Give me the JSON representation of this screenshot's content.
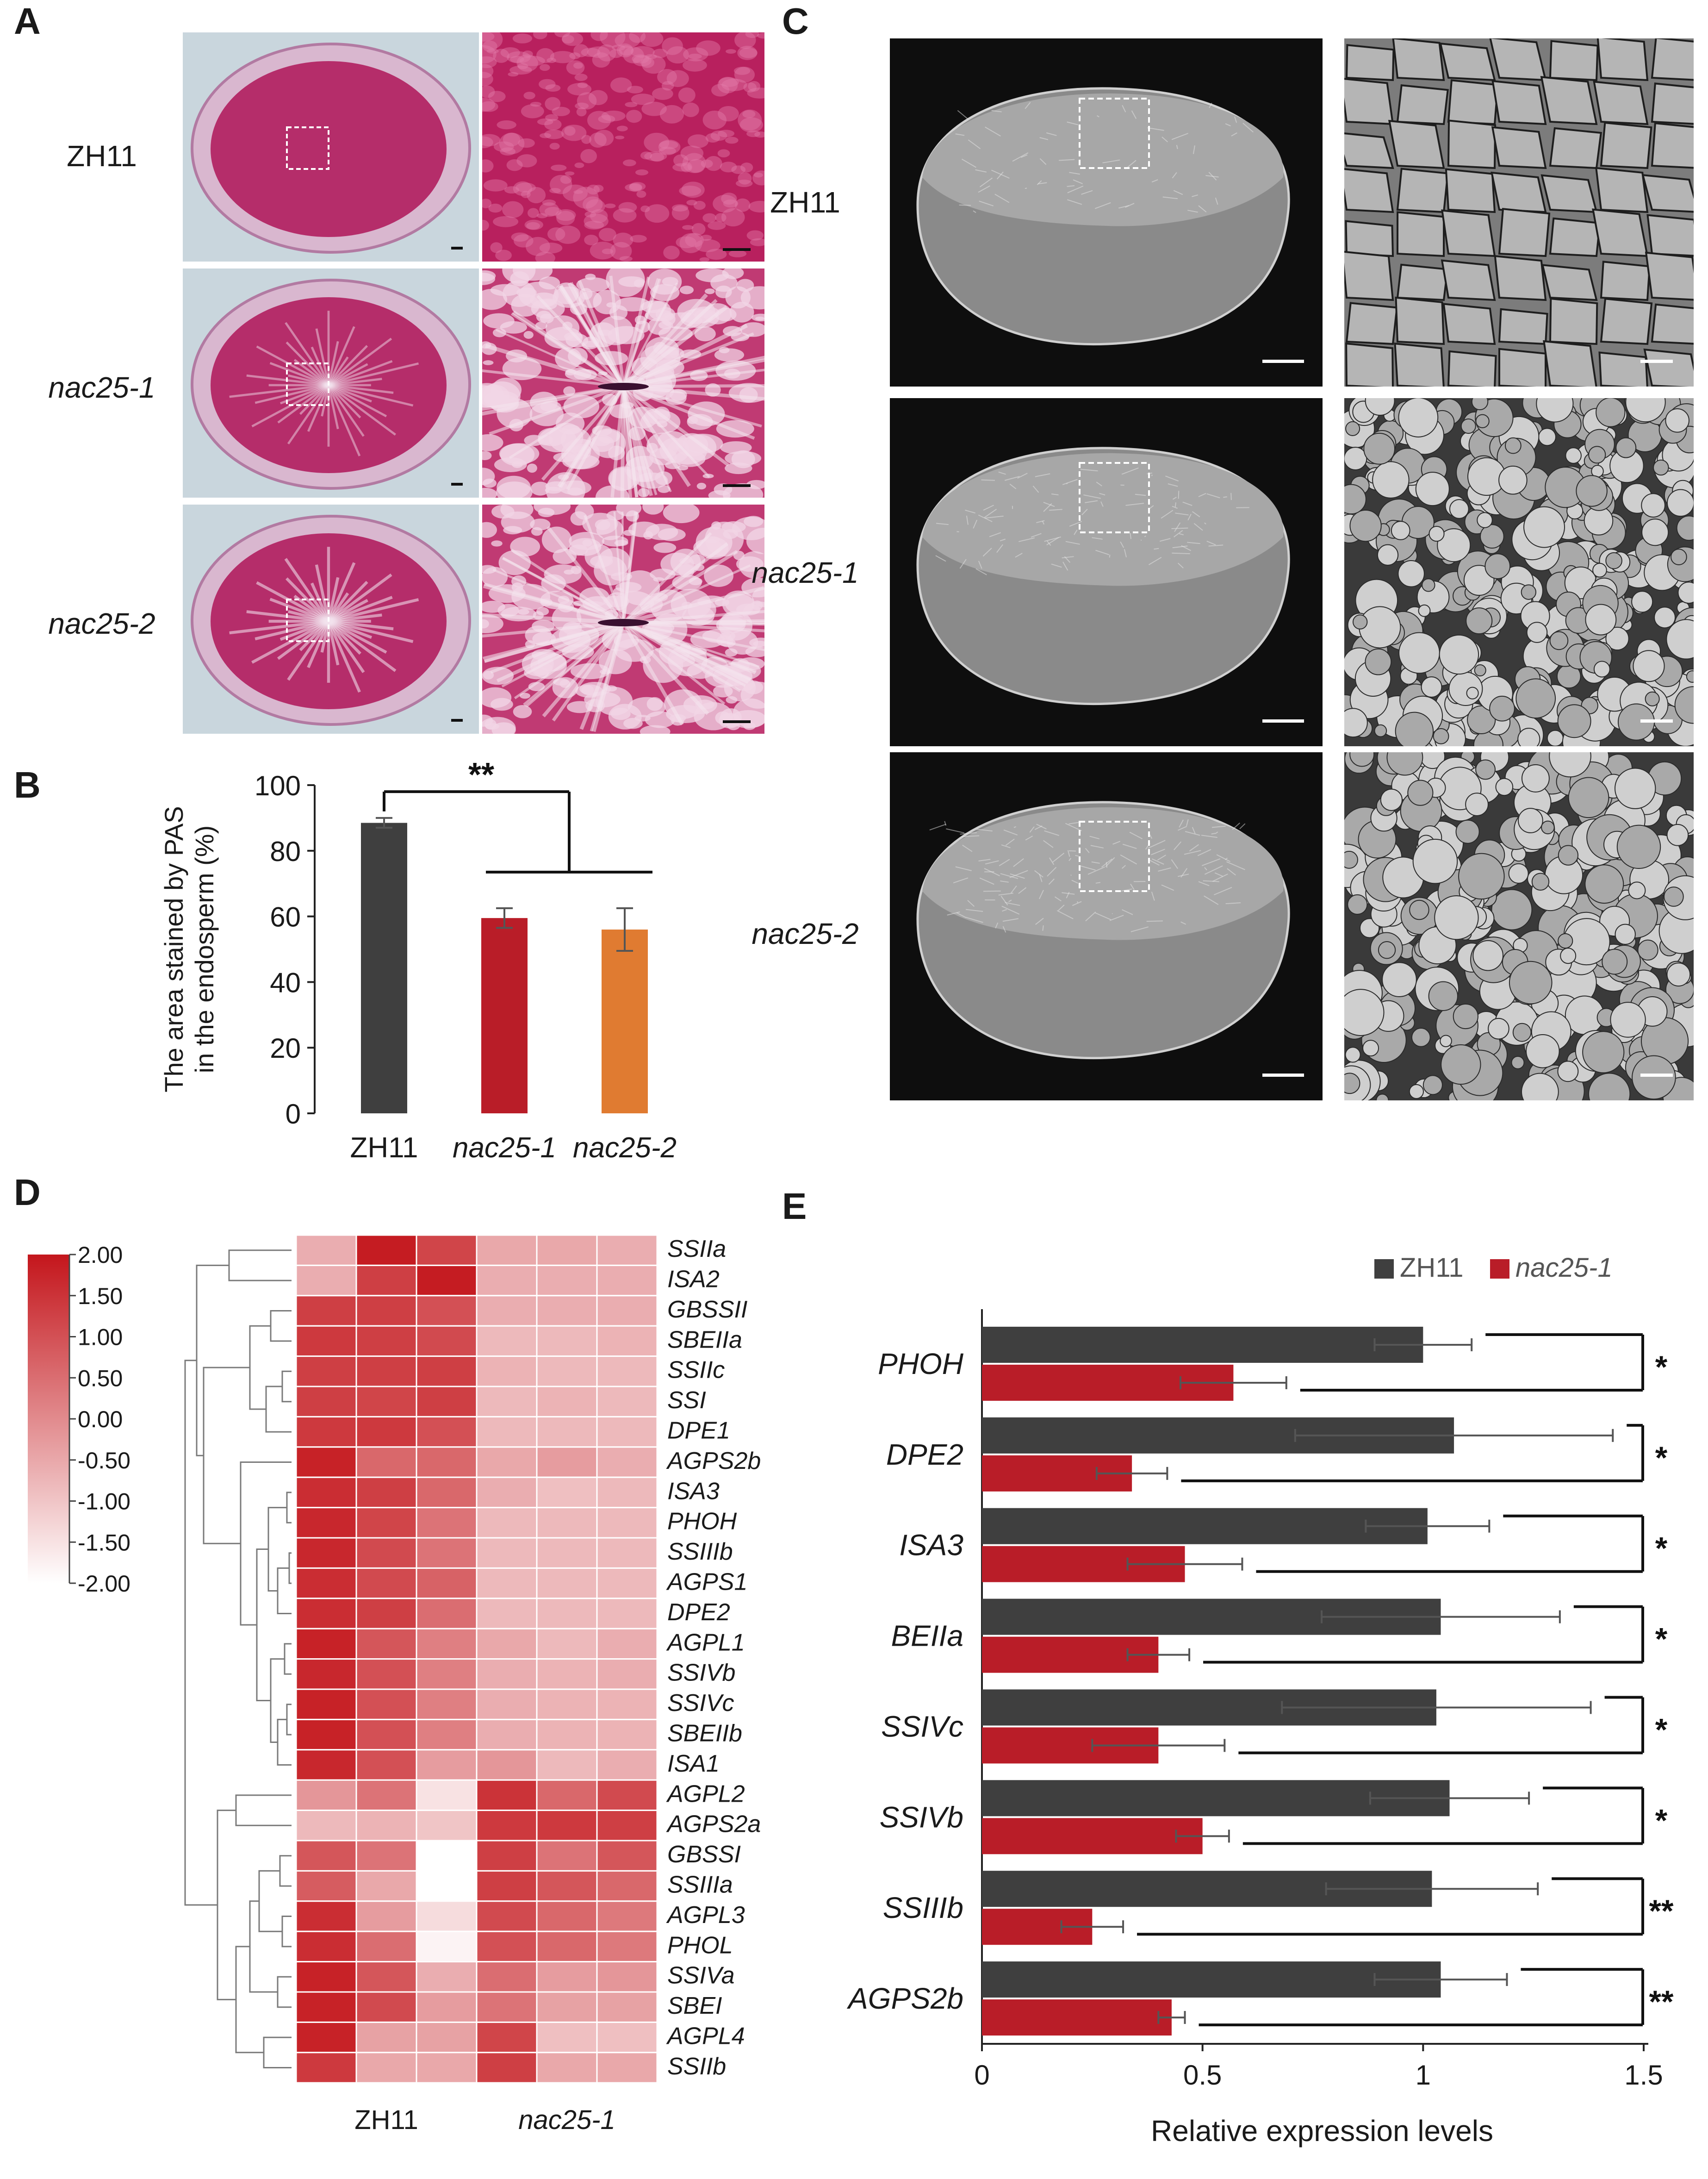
{
  "panels": {
    "a": {
      "letter": "A",
      "rows": [
        "ZH11",
        "nac25-1",
        "nac25-2"
      ]
    },
    "b": {
      "letter": "B"
    },
    "c": {
      "letter": "C",
      "rows": [
        "ZH11",
        "nac25-1",
        "nac25-2"
      ]
    },
    "d": {
      "letter": "D"
    },
    "e": {
      "letter": "E"
    }
  },
  "colors": {
    "zh11": "#3f3f3f",
    "nac25_1": "#b91d28",
    "nac25_2": "#e07b31",
    "heat_high": "#c4161c",
    "heat_low": "#ffffff",
    "pas_bg": "#c9d6dd",
    "pas_tissue": "#b52d6a"
  },
  "chart_data": [
    {
      "panel": "B",
      "type": "bar",
      "categories": [
        "ZH11",
        "nac25-1",
        "nac25-2"
      ],
      "values": [
        88.5,
        59.5,
        56.0
      ],
      "errors": [
        1.5,
        3.0,
        6.5
      ],
      "colors": [
        "#3f3f3f",
        "#b91d28",
        "#e07b31"
      ],
      "ylabel_line1": "The area stained by PAS",
      "ylabel_line2": "in the endosperm (%)",
      "ylim": [
        0,
        100
      ],
      "yticks": [
        0,
        20,
        40,
        60,
        80,
        100
      ],
      "significance": "**"
    },
    {
      "panel": "D",
      "type": "heatmap",
      "columns_groups": [
        "ZH11",
        "nac25-1"
      ],
      "legend_ticks": [
        "2.00",
        "1.50",
        "1.00",
        "0.50",
        "0.00",
        "-0.50",
        "-1.00",
        "-1.50",
        "-2.00"
      ],
      "scale": [
        -2,
        2
      ],
      "genes": [
        "SSIIa",
        "ISA2",
        "GBSSII",
        "SBEIIa",
        "SSIIc",
        "SSI",
        "DPE1",
        "AGPS2b",
        "ISA3",
        "PHOH",
        "SSIIIb",
        "AGPS1",
        "DPE2",
        "AGPL1",
        "SSIVb",
        "SSIVc",
        "SBEIIb",
        "ISA1",
        "AGPL2",
        "AGPS2a",
        "GBSSI",
        "SSIIIa",
        "AGPL3",
        "PHOL",
        "SSIVa",
        "SBEI",
        "AGPL4",
        "SSIIb"
      ],
      "values": [
        [
          -0.6,
          1.9,
          1.2,
          -0.5,
          -0.5,
          -0.6
        ],
        [
          -0.6,
          1.3,
          1.9,
          -0.6,
          -0.6,
          -0.6
        ],
        [
          1.3,
          1.3,
          1.0,
          -0.6,
          -0.6,
          -0.6
        ],
        [
          1.4,
          1.3,
          1.1,
          -0.8,
          -0.8,
          -0.7
        ],
        [
          1.3,
          1.3,
          1.3,
          -0.7,
          -0.8,
          -0.8
        ],
        [
          1.3,
          1.2,
          1.3,
          -0.8,
          -0.7,
          -0.8
        ],
        [
          1.4,
          1.4,
          1.0,
          -0.8,
          -0.8,
          -0.8
        ],
        [
          1.8,
          0.6,
          0.6,
          -0.5,
          -0.3,
          -0.6
        ],
        [
          1.6,
          1.3,
          0.6,
          -0.6,
          -0.9,
          -0.8
        ],
        [
          1.7,
          1.2,
          0.4,
          -0.8,
          -0.8,
          -0.8
        ],
        [
          1.7,
          1.1,
          0.4,
          -0.8,
          -0.8,
          -0.8
        ],
        [
          1.6,
          1.1,
          0.7,
          -0.8,
          -0.8,
          -0.8
        ],
        [
          1.6,
          1.3,
          0.5,
          -0.8,
          -0.8,
          -0.8
        ],
        [
          1.8,
          0.9,
          0.2,
          -0.5,
          -0.8,
          -0.6
        ],
        [
          1.7,
          1.0,
          0.2,
          -0.6,
          -0.7,
          -0.6
        ],
        [
          1.8,
          1.0,
          0.2,
          -0.6,
          -0.7,
          -0.7
        ],
        [
          1.8,
          1.0,
          0.2,
          -0.6,
          -0.7,
          -0.7
        ],
        [
          1.7,
          1.0,
          -0.3,
          -0.2,
          -0.8,
          -0.6
        ],
        [
          -0.2,
          0.4,
          -1.5,
          1.5,
          0.6,
          1.1
        ],
        [
          -0.8,
          -0.7,
          -1.0,
          1.4,
          1.4,
          1.3
        ],
        [
          0.9,
          0.4,
          -2.0,
          1.3,
          0.4,
          0.9
        ],
        [
          0.8,
          -0.5,
          -2.0,
          1.3,
          0.9,
          0.6
        ],
        [
          1.6,
          -0.3,
          -1.4,
          1.1,
          0.6,
          0.3
        ],
        [
          1.6,
          0.5,
          -1.8,
          1.0,
          0.6,
          0.3
        ],
        [
          1.8,
          0.9,
          -0.6,
          0.5,
          -0.3,
          -0.2
        ],
        [
          1.8,
          1.1,
          -0.3,
          0.4,
          -0.4,
          -0.4
        ],
        [
          1.8,
          -0.4,
          -0.4,
          1.2,
          -0.9,
          -0.9
        ],
        [
          1.4,
          -0.5,
          -0.5,
          1.3,
          -0.5,
          -0.5
        ]
      ]
    },
    {
      "panel": "E",
      "type": "bar",
      "orientation": "horizontal",
      "categories": [
        "PHOH",
        "DPE2",
        "ISA3",
        "BEIIa",
        "SSIVc",
        "SSIVb",
        "SSIIIb",
        "AGPS2b"
      ],
      "series": [
        {
          "name": "ZH11",
          "values": [
            1.0,
            1.07,
            1.01,
            1.04,
            1.03,
            1.06,
            1.02,
            1.04
          ],
          "errors": [
            0.11,
            0.36,
            0.14,
            0.27,
            0.35,
            0.18,
            0.24,
            0.15
          ]
        },
        {
          "name": "nac25-1",
          "values": [
            0.57,
            0.34,
            0.46,
            0.4,
            0.4,
            0.5,
            0.25,
            0.43
          ],
          "errors": [
            0.12,
            0.08,
            0.13,
            0.07,
            0.15,
            0.06,
            0.07,
            0.03
          ]
        }
      ],
      "significance": [
        "*",
        "*",
        "*",
        "*",
        "*",
        "*",
        "**",
        "**"
      ],
      "xlabel": "Relative expression levels",
      "xlim": [
        0,
        1.5
      ],
      "xticks": [
        "0",
        "0.5",
        "1",
        "1.5"
      ]
    }
  ]
}
